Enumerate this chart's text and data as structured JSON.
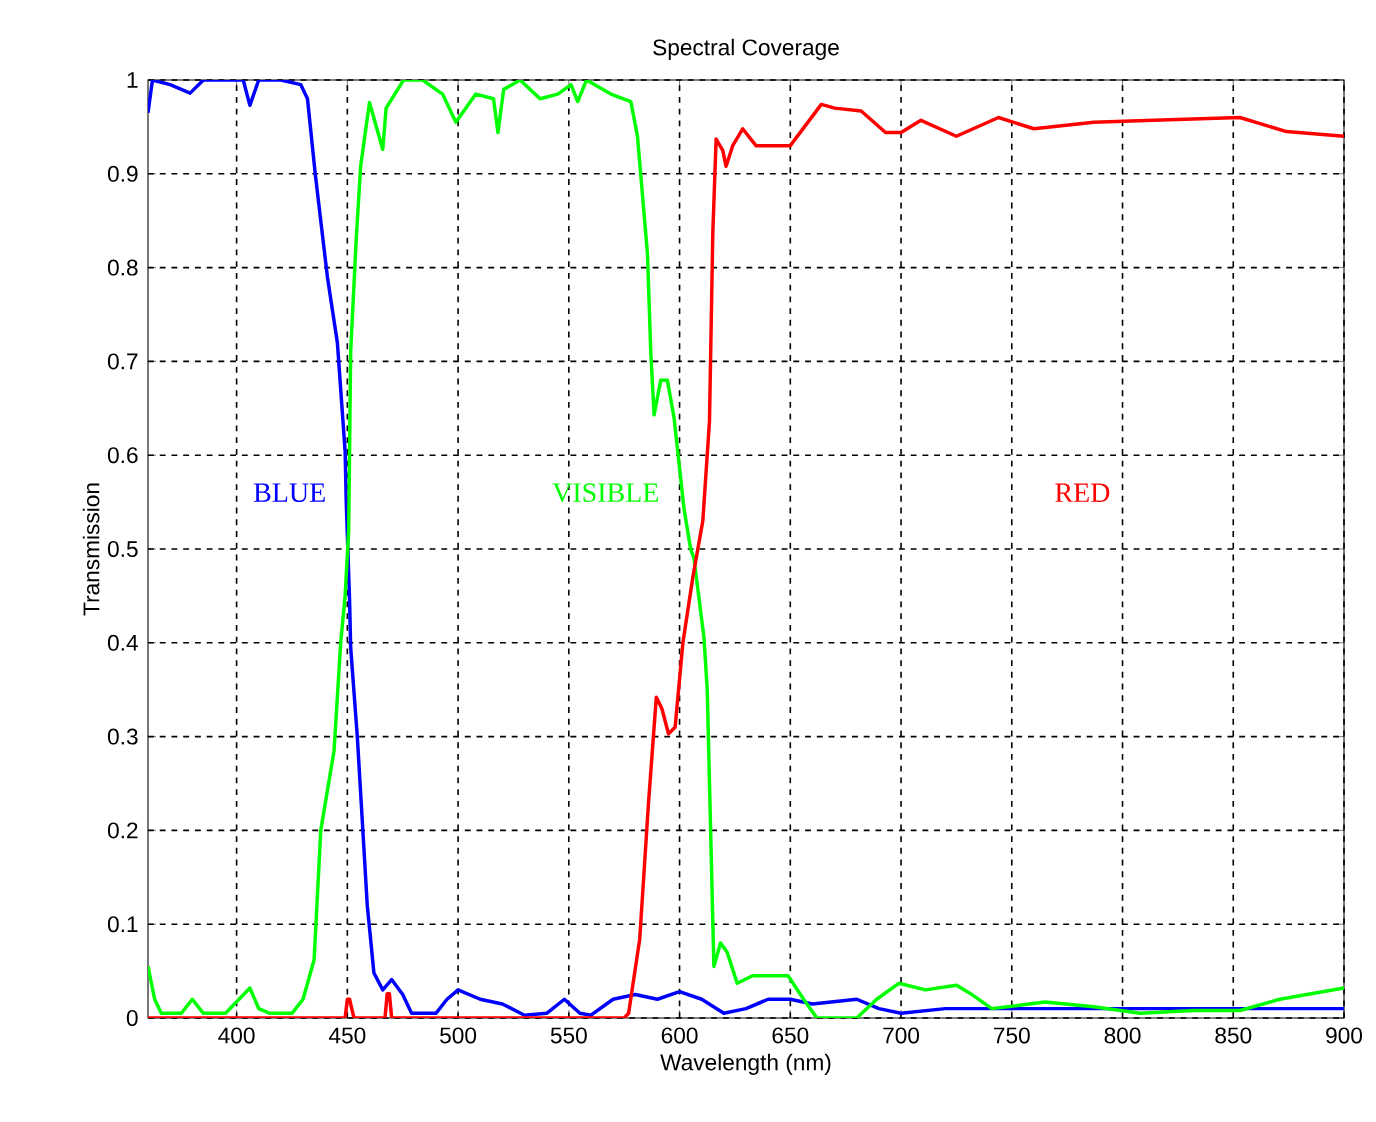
{
  "chart_data": {
    "type": "line",
    "title": "Spectral Coverage",
    "xlabel": "Wavelength (nm)",
    "ylabel": "Transmission",
    "xlim": [
      360,
      900
    ],
    "xticks": [
      400,
      450,
      500,
      550,
      600,
      650,
      700,
      750,
      800,
      850,
      900
    ],
    "ylim": [
      0,
      1
    ],
    "yticks": [
      0,
      0.1,
      0.2,
      0.3,
      0.4,
      0.5,
      0.6,
      0.7,
      0.8,
      0.9,
      1
    ],
    "grid": true,
    "legend": false,
    "marker": "none",
    "line_style": "solid",
    "series": [
      {
        "name": "BLUE",
        "color": "#0000ff",
        "x": [
          360,
          362,
          370,
          379,
          385,
          395,
          403,
          406,
          410,
          420,
          429,
          432,
          435.5,
          441,
          445.5,
          449,
          449.5,
          451,
          451.5,
          454.5,
          459,
          462,
          466,
          470,
          475,
          479,
          490,
          495,
          500,
          510,
          520,
          530,
          540,
          548,
          555,
          560,
          570,
          580,
          590,
          600,
          610,
          620,
          630,
          640,
          650,
          660,
          680,
          690,
          700,
          720,
          750,
          800,
          850,
          900
        ],
        "values": [
          0.965,
          1.0,
          0.995,
          0.986,
          1.0,
          1.0,
          1.0,
          0.973,
          1.0,
          1.0,
          0.995,
          0.98,
          0.9,
          0.79,
          0.72,
          0.604,
          0.55,
          0.446,
          0.395,
          0.3,
          0.12,
          0.048,
          0.03,
          0.041,
          0.025,
          0.005,
          0.005,
          0.02,
          0.03,
          0.02,
          0.015,
          0.003,
          0.005,
          0.02,
          0.005,
          0.003,
          0.02,
          0.025,
          0.02,
          0.028,
          0.02,
          0.005,
          0.01,
          0.02,
          0.02,
          0.015,
          0.02,
          0.01,
          0.005,
          0.01,
          0.01,
          0.01,
          0.01,
          0.01
        ]
      },
      {
        "name": "VISIBLE",
        "color": "#00ff00",
        "x": [
          360,
          363,
          366,
          375,
          380,
          385,
          395,
          406,
          410,
          415,
          425,
          430,
          435,
          438,
          444,
          447,
          449,
          450.6,
          451.5,
          454,
          456,
          460,
          463,
          466,
          467.5,
          475.4,
          484,
          493,
          499,
          508,
          516,
          518,
          520.6,
          528,
          537,
          545,
          551,
          554,
          558,
          569,
          578,
          581,
          585.5,
          587,
          588.5,
          591.5,
          594.5,
          597.5,
          602,
          605,
          606.5,
          611,
          612.5,
          615.5,
          618.5,
          621.5,
          626,
          633,
          638,
          649,
          656,
          662,
          680,
          689,
          699,
          711,
          725,
          732,
          741,
          765,
          787,
          808,
          832,
          853,
          871,
          900
        ],
        "values": [
          0.055,
          0.02,
          0.005,
          0.005,
          0.02,
          0.005,
          0.005,
          0.032,
          0.01,
          0.005,
          0.005,
          0.02,
          0.062,
          0.2,
          0.285,
          0.4,
          0.45,
          0.52,
          0.71,
          0.83,
          0.908,
          0.976,
          0.951,
          0.926,
          0.97,
          1.0,
          1.0,
          0.985,
          0.955,
          0.985,
          0.98,
          0.944,
          0.99,
          1.0,
          0.98,
          0.985,
          0.995,
          0.977,
          1.0,
          0.985,
          0.977,
          0.94,
          0.815,
          0.71,
          0.643,
          0.68,
          0.68,
          0.64,
          0.543,
          0.5,
          0.49,
          0.406,
          0.35,
          0.055,
          0.08,
          0.07,
          0.037,
          0.045,
          0.045,
          0.045,
          0.02,
          0.0,
          0.0,
          0.02,
          0.037,
          0.03,
          0.035,
          0.025,
          0.01,
          0.017,
          0.012,
          0.005,
          0.008,
          0.008,
          0.02,
          0.032
        ]
      },
      {
        "name": "RED",
        "color": "#ff0000",
        "x": [
          360,
          449,
          450,
          451,
          453,
          467,
          468,
          469,
          470,
          575,
          577,
          582,
          586,
          589.5,
          592,
          595,
          598,
          601.5,
          606,
          610.5,
          613.5,
          615,
          616.5,
          619.5,
          621,
          624,
          628.5,
          634.5,
          650,
          664,
          670,
          682,
          693,
          700,
          709,
          725,
          744,
          760,
          787,
          814,
          853,
          874,
          900
        ],
        "values": [
          0.0,
          0.0,
          0.02,
          0.02,
          0.0,
          0.0,
          0.026,
          0.026,
          0.0,
          0.0,
          0.005,
          0.084,
          0.23,
          0.342,
          0.33,
          0.303,
          0.31,
          0.4,
          0.47,
          0.53,
          0.636,
          0.836,
          0.937,
          0.925,
          0.908,
          0.93,
          0.948,
          0.93,
          0.93,
          0.974,
          0.97,
          0.967,
          0.944,
          0.944,
          0.957,
          0.94,
          0.96,
          0.948,
          0.955,
          0.957,
          0.96,
          0.945,
          0.94
        ]
      }
    ]
  }
}
